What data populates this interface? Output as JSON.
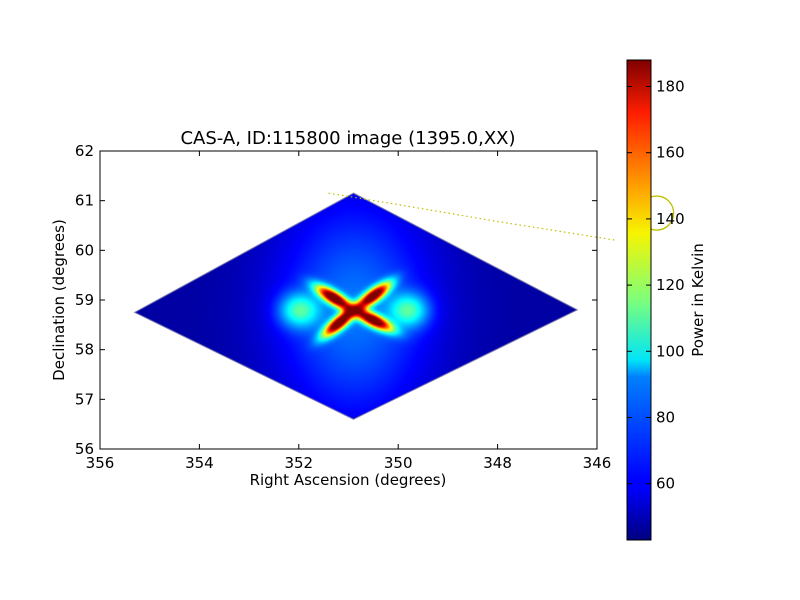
{
  "chart_data": {
    "type": "heatmap",
    "title": "CAS-A, ID:115800 image (1395.0,XX)",
    "xlabel": "Right Ascension (degrees)",
    "ylabel": "Declination (degrees)",
    "xlim": [
      356,
      346
    ],
    "ylim": [
      56,
      62
    ],
    "xticks": [
      "356",
      "354",
      "352",
      "350",
      "348",
      "346"
    ],
    "yticks": [
      "56",
      "57",
      "58",
      "59",
      "60",
      "61",
      "62"
    ],
    "colorbar": {
      "label": "Power in Kelvin",
      "range": [
        43,
        188
      ],
      "ticks": [
        "60",
        "80",
        "100",
        "120",
        "140",
        "160",
        "180"
      ],
      "colormap": "jet"
    },
    "field_boundary": {
      "shape": "diamond",
      "vertices_radec": [
        [
          355.3,
          58.75
        ],
        [
          350.9,
          61.15
        ],
        [
          346.4,
          58.8
        ],
        [
          350.9,
          56.6
        ]
      ]
    },
    "background_level": 48,
    "source": {
      "ra": 350.9,
      "dec": 58.8,
      "peak": 188,
      "lobes": [
        {
          "ra": 351.3,
          "dec": 59.05,
          "value": 186
        },
        {
          "ra": 350.5,
          "dec": 59.1,
          "value": 182
        },
        {
          "ra": 351.2,
          "dec": 58.55,
          "value": 184
        },
        {
          "ra": 350.5,
          "dec": 58.6,
          "value": 183
        }
      ]
    },
    "overlay": {
      "circle_ra": 344.8,
      "circle_dec": 60.75,
      "circle_color": "#bfbf00",
      "track_radec": [
        [
          351.4,
          61.15
        ],
        [
          350.0,
          60.92
        ],
        [
          348.0,
          60.58
        ],
        [
          345.6,
          60.2
        ]
      ]
    }
  }
}
